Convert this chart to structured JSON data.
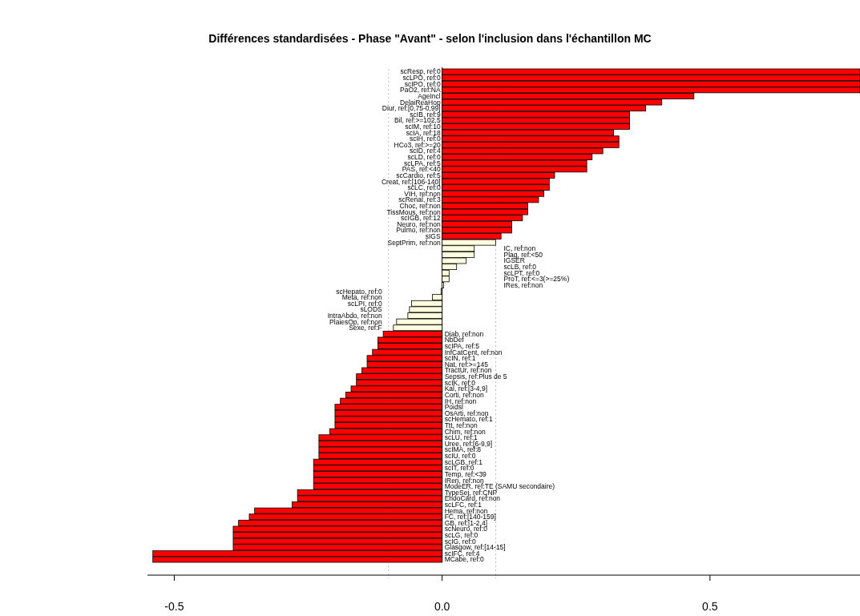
{
  "chart_data": {
    "type": "bar",
    "orientation": "horizontal",
    "title": "Différences standardisées - Phase \"Avant\" - selon l'inclusion dans l'échantillon MC",
    "categories": [
      "scResp, ref:0",
      "scLPO, ref:0",
      "scIPO, ref:0",
      "PaO2, ref:NA",
      "AgeIncl",
      "DelaiReaHop",
      "Diur, ref:[0,75-0,99]",
      "scIB, ref:9",
      "Bil, ref:>=102,5",
      "scIM, ref:10",
      "scIA, ref:18",
      "scIH, ref:0",
      "HCo3, ref:>=20",
      "scID, ref:4",
      "scLD, ref:0",
      "scLPA, ref:5",
      "PAS, ref:<40",
      "scCardio, ref:5",
      "Creat, ref:[106-140]",
      "scLC, ref:0",
      "VIH, ref:non",
      "scRenal, ref:3",
      "Choc, ref:non",
      "TissMous, ref:non",
      "scIGB, ref:12",
      "Neuro, ref:non",
      "Pulmo, ref:non",
      "sIGS",
      "SeptPrim, ref:non",
      "IC, ref:non",
      "Plag, ref:<50",
      "IGSER",
      "scLB, ref:0",
      "scLPT, ref:0",
      "ProT, ref:<=3(>=25%)",
      "IRes, ref:non",
      "scHepato, ref:0",
      "Meta, ref:non",
      "scLPI, ref:0",
      "sLODS",
      "IntraAbdo, ref:non",
      "PlaiesOp, ref:non",
      "Sexe, ref:F",
      "Diab, ref:non",
      "NbDef",
      "scIPA, ref:5",
      "InfCatCent, ref:non",
      "scIN, ref:1",
      "Nat, ref:>=145",
      "TractUr, ref:non",
      "Sepsis, ref:Plus de 5",
      "scIK, ref:0",
      "Kal, ref:[3-4,9]",
      "Corti, ref:non",
      "IH, ref:non",
      "Poidsl",
      "OsArti, ref:non",
      "scHemato, ref:1",
      "Ttt, ref:non",
      "Chim, ref:non",
      "scLU, ref:1",
      "Uree, ref:[6-9,9]",
      "scIMA, ref:8",
      "scIU, ref:0",
      "scLGB, ref:1",
      "scIT, ref:0",
      "Temp, ref:<39",
      "IRen, ref:non",
      "ModeER, ref:TE (SAMU secondaire)",
      "TypeSej, ref:CNP",
      "EndoCard, ref:non",
      "scLFC, ref:1",
      "Hema, ref:non",
      "FC, ref:[140-159]",
      "GB, ref:[1-2,4]",
      "scNeuro, ref:0",
      "scLG, ref:0",
      "scIG, ref:0",
      "Glasgow, ref:[14-15]",
      "scIFC, ref:4",
      "MCabe, ref:0"
    ],
    "values": [
      0.78,
      0.78,
      0.78,
      0.78,
      0.47,
      0.41,
      0.38,
      0.35,
      0.35,
      0.35,
      0.32,
      0.33,
      0.33,
      0.3,
      0.28,
      0.27,
      0.27,
      0.21,
      0.2,
      0.2,
      0.19,
      0.18,
      0.16,
      0.16,
      0.15,
      0.13,
      0.13,
      0.11,
      0.1,
      0.06,
      0.06,
      0.045,
      0.027,
      0.013,
      0.013,
      0.003,
      -0.002,
      -0.018,
      -0.057,
      -0.061,
      -0.064,
      -0.085,
      -0.091,
      -0.11,
      -0.12,
      -0.12,
      -0.13,
      -0.14,
      -0.14,
      -0.15,
      -0.16,
      -0.16,
      -0.17,
      -0.18,
      -0.19,
      -0.2,
      -0.2,
      -0.2,
      -0.2,
      -0.21,
      -0.23,
      -0.23,
      -0.23,
      -0.23,
      -0.24,
      -0.24,
      -0.24,
      -0.24,
      -0.24,
      -0.27,
      -0.27,
      -0.28,
      -0.35,
      -0.36,
      -0.38,
      -0.39,
      -0.39,
      -0.39,
      -0.39,
      -0.54,
      -0.54
    ],
    "colors": [
      "#ff0000",
      "#ff0000",
      "#ff0000",
      "#ff0000",
      "#ff0000",
      "#ff0000",
      "#ff0000",
      "#ff0000",
      "#ff0000",
      "#ff0000",
      "#ff0000",
      "#ff0000",
      "#ff0000",
      "#ff0000",
      "#ff0000",
      "#ff0000",
      "#ff0000",
      "#ff0000",
      "#ff0000",
      "#ff0000",
      "#ff0000",
      "#ff0000",
      "#ff0000",
      "#ff0000",
      "#ff0000",
      "#ff0000",
      "#ff0000",
      "#ff0000",
      "#ffffe0",
      "#ffffe0",
      "#ffffe0",
      "#ffffe0",
      "#ffffe0",
      "#ffffe0",
      "#ffffe0",
      "#ffffe0",
      "#ffffe0",
      "#ffffe0",
      "#ffffe0",
      "#ffffe0",
      "#ffffe0",
      "#ffffe0",
      "#ffffe0",
      "#ff0000",
      "#ff0000",
      "#ff0000",
      "#ff0000",
      "#ff0000",
      "#ff0000",
      "#ff0000",
      "#ff0000",
      "#ff0000",
      "#ff0000",
      "#ff0000",
      "#ff0000",
      "#ff0000",
      "#ff0000",
      "#ff0000",
      "#ff0000",
      "#ff0000",
      "#ff0000",
      "#ff0000",
      "#ff0000",
      "#ff0000",
      "#ff0000",
      "#ff0000",
      "#ff0000",
      "#ff0000",
      "#ff0000",
      "#ff0000",
      "#ff0000",
      "#ff0000",
      "#ff0000",
      "#ff0000",
      "#ff0000",
      "#ff0000",
      "#ff0000",
      "#ff0000",
      "#ff0000",
      "#ff0000",
      "#ff0000"
    ],
    "xlim": [
      -0.55,
      0.78
    ],
    "xticks": [
      {
        "value": -0.5,
        "label": "-0.5"
      },
      {
        "value": 0,
        "label": "0.0"
      },
      {
        "value": 0.5,
        "label": "0.5"
      }
    ],
    "ref_lines": [
      {
        "axis": "x",
        "value": -0.1,
        "color": "#bebebe",
        "line_style": "dotted"
      },
      {
        "axis": "x",
        "value": 0.1,
        "color": "#bebebe",
        "line_style": "dotted"
      }
    ],
    "grid": false
  }
}
